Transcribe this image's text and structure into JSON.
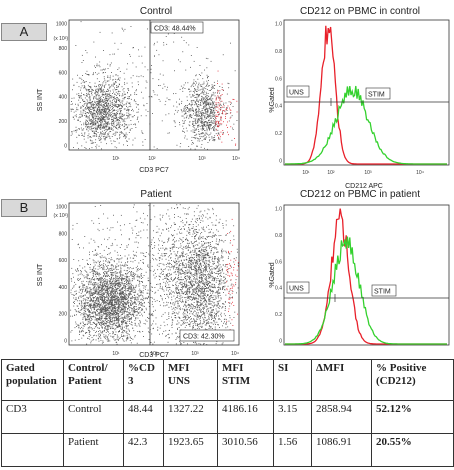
{
  "panel_a": {
    "label": "A",
    "dot_title": "Control",
    "gate_label": "CD3: 48.44%",
    "hist_title": "CD212 on PBMC in control",
    "hist_xlabel": "CD212 APC"
  },
  "panel_b": {
    "label": "B",
    "dot_title": "Patient",
    "gate_label": "CD3: 42.30%",
    "hist_title": "CD212 on PBMC in patient",
    "hist_xlabel": ""
  },
  "dot_axes": {
    "ylabel": "SS INT",
    "xlabel": "CD3 PC7",
    "y_multiplier": "(x 10³)",
    "y_ticks": [
      "1000",
      "800",
      "600",
      "400",
      "200",
      "0"
    ],
    "x_ticks": [
      "10¹",
      "10²",
      "10³",
      "10⁴"
    ],
    "x_ticks_b": [
      "10¹",
      "10²",
      "10³",
      "10⁴"
    ]
  },
  "hist_axes": {
    "ylabel": "%Gated",
    "y_ticks": [
      "1.0",
      "0.8",
      "0.6",
      "0.4",
      "0.2",
      "0"
    ],
    "x_ticks": [
      "10¹",
      "10²",
      "10³",
      "10⁴"
    ],
    "uns_label": "UNS",
    "stim_label": "STIM"
  },
  "colors": {
    "unstim": "#e8202a",
    "stim": "#34d12e",
    "dots": "#555555",
    "gate_dots": "#e0303a",
    "label_bg": "#d9d9d9"
  },
  "table": {
    "headers": [
      "Gated population",
      "Control/ Patient",
      "%CD 3",
      "MFI UNS",
      "MFI STIM",
      "SI",
      "ΔMFI",
      "% Positive (CD212)"
    ],
    "rows": [
      [
        "CD3",
        "Control",
        "48.44",
        "1327.22",
        "4186.16",
        "3.15",
        "2858.94",
        "52.12%"
      ],
      [
        "",
        "Patient",
        "42.3",
        "1923.65",
        "3010.56",
        "1.56",
        "1086.91",
        "20.55%"
      ]
    ]
  }
}
